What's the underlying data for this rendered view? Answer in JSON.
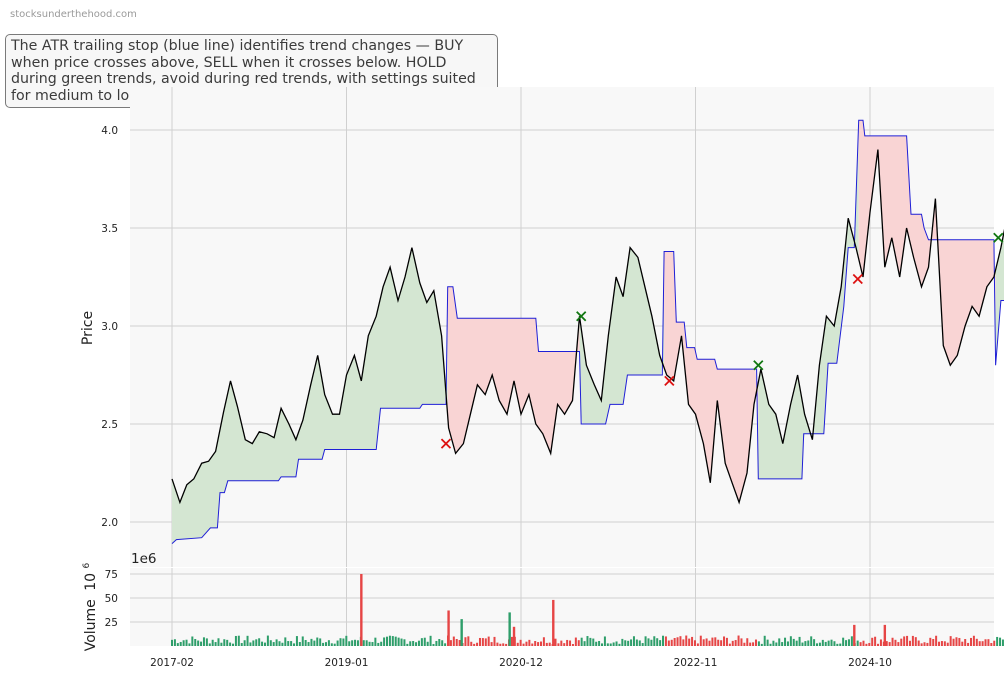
{
  "watermark": "stocksunderthehood.com",
  "annotation": "The ATR trailing stop (blue line) identifies trend changes — BUY when price crosses above, SELL when it crosses below. HOLD during green trends, avoid during red trends, with settings suited for medium to long-term investors.",
  "colors": {
    "price": "#000000",
    "stop": "#1f1fd6",
    "uptrend_fill": "#d4e6d2",
    "downtrend_fill": "#f9d4d4",
    "buy_marker": "#117711",
    "sell_marker": "#dd1111",
    "vol_up": "#2e9e6a",
    "vol_down": "#e64545"
  },
  "chart_data": [
    {
      "type": "line",
      "ylabel": "Price",
      "ylim": [
        1.88,
        4.2
      ],
      "yticks": [
        "2.0",
        "2.5",
        "3.0",
        "3.5",
        "4.0"
      ],
      "xticks": [
        "2017-02",
        "2019-01",
        "2020-12",
        "2022-11",
        "2024-10"
      ],
      "grid": true,
      "series": [
        {
          "name": "price",
          "key": "price",
          "values": [
            [
              2017.08,
              2.22
            ],
            [
              2017.17,
              2.1
            ],
            [
              2017.25,
              2.19
            ],
            [
              2017.33,
              2.22
            ],
            [
              2017.42,
              2.3
            ],
            [
              2017.5,
              2.31
            ],
            [
              2017.58,
              2.36
            ],
            [
              2017.67,
              2.56
            ],
            [
              2017.75,
              2.72
            ],
            [
              2017.83,
              2.59
            ],
            [
              2017.92,
              2.42
            ],
            [
              2018.0,
              2.4
            ],
            [
              2018.08,
              2.46
            ],
            [
              2018.17,
              2.45
            ],
            [
              2018.25,
              2.43
            ],
            [
              2018.33,
              2.58
            ],
            [
              2018.42,
              2.5
            ],
            [
              2018.5,
              2.42
            ],
            [
              2018.58,
              2.52
            ],
            [
              2018.67,
              2.7
            ],
            [
              2018.75,
              2.85
            ],
            [
              2018.83,
              2.65
            ],
            [
              2018.92,
              2.55
            ],
            [
              2019.0,
              2.55
            ],
            [
              2019.08,
              2.75
            ],
            [
              2019.17,
              2.85
            ],
            [
              2019.25,
              2.72
            ],
            [
              2019.33,
              2.95
            ],
            [
              2019.42,
              3.05
            ],
            [
              2019.5,
              3.2
            ],
            [
              2019.58,
              3.3
            ],
            [
              2019.67,
              3.13
            ],
            [
              2019.75,
              3.25
            ],
            [
              2019.83,
              3.4
            ],
            [
              2019.92,
              3.22
            ],
            [
              2020.0,
              3.12
            ],
            [
              2020.08,
              3.18
            ],
            [
              2020.17,
              2.95
            ],
            [
              2020.25,
              2.48
            ],
            [
              2020.33,
              2.35
            ],
            [
              2020.42,
              2.4
            ],
            [
              2020.5,
              2.55
            ],
            [
              2020.58,
              2.7
            ],
            [
              2020.67,
              2.65
            ],
            [
              2020.75,
              2.75
            ],
            [
              2020.83,
              2.62
            ],
            [
              2020.92,
              2.55
            ],
            [
              2021.0,
              2.72
            ],
            [
              2021.08,
              2.55
            ],
            [
              2021.17,
              2.65
            ],
            [
              2021.25,
              2.5
            ],
            [
              2021.33,
              2.45
            ],
            [
              2021.42,
              2.35
            ],
            [
              2021.5,
              2.6
            ],
            [
              2021.58,
              2.55
            ],
            [
              2021.67,
              2.62
            ],
            [
              2021.75,
              3.05
            ],
            [
              2021.83,
              2.8
            ],
            [
              2021.92,
              2.7
            ],
            [
              2022.0,
              2.62
            ],
            [
              2022.08,
              2.95
            ],
            [
              2022.17,
              3.25
            ],
            [
              2022.25,
              3.15
            ],
            [
              2022.33,
              3.4
            ],
            [
              2022.42,
              3.35
            ],
            [
              2022.5,
              3.2
            ],
            [
              2022.58,
              3.05
            ],
            [
              2022.67,
              2.85
            ],
            [
              2022.75,
              2.75
            ],
            [
              2022.83,
              2.72
            ],
            [
              2022.92,
              2.95
            ],
            [
              2023.0,
              2.6
            ],
            [
              2023.08,
              2.55
            ],
            [
              2023.17,
              2.4
            ],
            [
              2023.25,
              2.2
            ],
            [
              2023.33,
              2.62
            ],
            [
              2023.42,
              2.3
            ],
            [
              2023.5,
              2.2
            ],
            [
              2023.58,
              2.1
            ],
            [
              2023.67,
              2.25
            ],
            [
              2023.75,
              2.6
            ],
            [
              2023.83,
              2.78
            ],
            [
              2023.92,
              2.6
            ],
            [
              2024.0,
              2.55
            ],
            [
              2024.08,
              2.4
            ],
            [
              2024.17,
              2.6
            ],
            [
              2024.25,
              2.75
            ],
            [
              2024.33,
              2.55
            ],
            [
              2024.42,
              2.42
            ],
            [
              2024.5,
              2.8
            ],
            [
              2024.58,
              3.05
            ],
            [
              2024.67,
              3.0
            ],
            [
              2024.75,
              3.2
            ],
            [
              2024.83,
              3.55
            ],
            [
              2024.92,
              3.4
            ],
            [
              2025.0,
              3.25
            ],
            [
              2025.08,
              3.58
            ],
            [
              2025.17,
              3.9
            ],
            [
              2025.25,
              3.3
            ],
            [
              2025.33,
              3.45
            ],
            [
              2025.42,
              3.25
            ],
            [
              2025.5,
              3.5
            ],
            [
              2025.58,
              3.35
            ],
            [
              2025.67,
              3.2
            ],
            [
              2025.75,
              3.3
            ],
            [
              2025.83,
              3.65
            ],
            [
              2025.92,
              2.9
            ],
            [
              2026.0,
              2.8
            ],
            [
              2026.08,
              2.85
            ],
            [
              2026.17,
              3.0
            ],
            [
              2026.25,
              3.1
            ],
            [
              2026.33,
              3.05
            ],
            [
              2026.42,
              3.2
            ],
            [
              2026.5,
              3.25
            ],
            [
              2026.58,
              3.4
            ],
            [
              2026.67,
              3.6
            ],
            [
              2026.75,
              3.85
            ],
            [
              2026.83,
              3.7
            ],
            [
              2026.92,
              3.55
            ],
            [
              2027.0,
              3.52
            ],
            [
              2027.08,
              3.4
            ],
            [
              2027.17,
              2.75
            ],
            [
              2027.25,
              2.65
            ]
          ]
        },
        {
          "name": "stop",
          "key": "stop",
          "values": [
            [
              2017.08,
              1.89
            ],
            [
              2017.13,
              1.91
            ],
            [
              2017.42,
              1.92
            ],
            [
              2017.52,
              1.97
            ],
            [
              2017.6,
              1.97
            ],
            [
              2017.63,
              2.15
            ],
            [
              2017.68,
              2.15
            ],
            [
              2017.72,
              2.21
            ],
            [
              2018.3,
              2.21
            ],
            [
              2018.33,
              2.23
            ],
            [
              2018.5,
              2.23
            ],
            [
              2018.53,
              2.32
            ],
            [
              2018.8,
              2.32
            ],
            [
              2018.83,
              2.37
            ],
            [
              2019.42,
              2.37
            ],
            [
              2019.47,
              2.58
            ],
            [
              2019.92,
              2.58
            ],
            [
              2019.95,
              2.6
            ],
            [
              2020.22,
              2.6
            ],
            [
              2020.24,
              3.2
            ],
            [
              2020.3,
              3.2
            ],
            [
              2020.35,
              3.04
            ],
            [
              2021.25,
              3.04
            ],
            [
              2021.28,
              2.87
            ],
            [
              2021.75,
              2.87
            ],
            [
              2021.77,
              2.5
            ],
            [
              2022.05,
              2.5
            ],
            [
              2022.1,
              2.6
            ],
            [
              2022.25,
              2.6
            ],
            [
              2022.3,
              2.75
            ],
            [
              2022.7,
              2.75
            ],
            [
              2022.72,
              3.38
            ],
            [
              2022.83,
              3.38
            ],
            [
              2022.86,
              3.02
            ],
            [
              2022.95,
              3.02
            ],
            [
              2022.98,
              2.89
            ],
            [
              2023.07,
              2.89
            ],
            [
              2023.1,
              2.83
            ],
            [
              2023.3,
              2.83
            ],
            [
              2023.33,
              2.78
            ],
            [
              2023.78,
              2.78
            ],
            [
              2023.8,
              2.22
            ],
            [
              2024.3,
              2.22
            ],
            [
              2024.32,
              2.45
            ],
            [
              2024.55,
              2.45
            ],
            [
              2024.6,
              2.81
            ],
            [
              2024.7,
              2.81
            ],
            [
              2024.78,
              3.1
            ],
            [
              2024.83,
              3.4
            ],
            [
              2024.9,
              3.4
            ],
            [
              2024.95,
              4.05
            ],
            [
              2025.0,
              4.05
            ],
            [
              2025.02,
              3.97
            ],
            [
              2025.5,
              3.97
            ],
            [
              2025.55,
              3.57
            ],
            [
              2025.67,
              3.57
            ],
            [
              2025.7,
              3.5
            ],
            [
              2025.75,
              3.44
            ],
            [
              2026.08,
              3.44
            ],
            [
              2026.1,
              3.44
            ],
            [
              2026.5,
              3.44
            ],
            [
              2026.52,
              2.8
            ],
            [
              2026.58,
              3.13
            ],
            [
              2026.92,
              3.13
            ],
            [
              2026.95,
              3.55
            ],
            [
              2027.0,
              3.5
            ],
            [
              2027.08,
              3.42
            ],
            [
              2027.12,
              3.38
            ],
            [
              2027.25,
              3.38
            ]
          ]
        }
      ],
      "trend_segments": [
        {
          "trend": "up",
          "x": [
            2017.08,
            2020.24
          ]
        },
        {
          "trend": "down",
          "x": [
            2020.24,
            2021.75
          ]
        },
        {
          "trend": "up",
          "x": [
            2021.75,
            2022.72
          ]
        },
        {
          "trend": "down",
          "x": [
            2022.72,
            2023.8
          ]
        },
        {
          "trend": "up",
          "x": [
            2023.8,
            2024.95
          ]
        },
        {
          "trend": "down",
          "x": [
            2024.95,
            2026.52
          ]
        },
        {
          "trend": "up",
          "x": [
            2026.52,
            2027.17
          ]
        },
        {
          "trend": "down",
          "x": [
            2027.17,
            2027.25
          ]
        }
      ],
      "signals": [
        {
          "type": "sell",
          "x": 2020.22,
          "y": 2.4
        },
        {
          "type": "buy",
          "x": 2021.77,
          "y": 3.05
        },
        {
          "type": "sell",
          "x": 2022.78,
          "y": 2.72
        },
        {
          "type": "buy",
          "x": 2023.8,
          "y": 2.8
        },
        {
          "type": "sell",
          "x": 2024.94,
          "y": 3.24
        },
        {
          "type": "buy",
          "x": 2026.55,
          "y": 3.45
        },
        {
          "type": "sell",
          "x": 2027.12,
          "y": 2.83
        }
      ]
    },
    {
      "type": "bar",
      "ylabel": "Volume",
      "ylabel_exponent": "6",
      "offset_text": "1e6",
      "ylim": [
        0,
        80
      ],
      "yticks": [
        "25",
        "50",
        "75"
      ],
      "grid": true,
      "spikes": [
        {
          "x": 2019.25,
          "value": 75,
          "trend": "down"
        },
        {
          "x": 2020.25,
          "value": 37,
          "trend": "down"
        },
        {
          "x": 2020.4,
          "value": 28,
          "trend": "up"
        },
        {
          "x": 2020.95,
          "value": 35,
          "trend": "up"
        },
        {
          "x": 2021.0,
          "value": 20,
          "trend": "down"
        },
        {
          "x": 2021.45,
          "value": 48,
          "trend": "down"
        },
        {
          "x": 2024.9,
          "value": 22,
          "trend": "down"
        },
        {
          "x": 2025.25,
          "value": 22,
          "trend": "down"
        },
        {
          "x": 2027.15,
          "value": 25,
          "trend": "down"
        }
      ]
    }
  ]
}
